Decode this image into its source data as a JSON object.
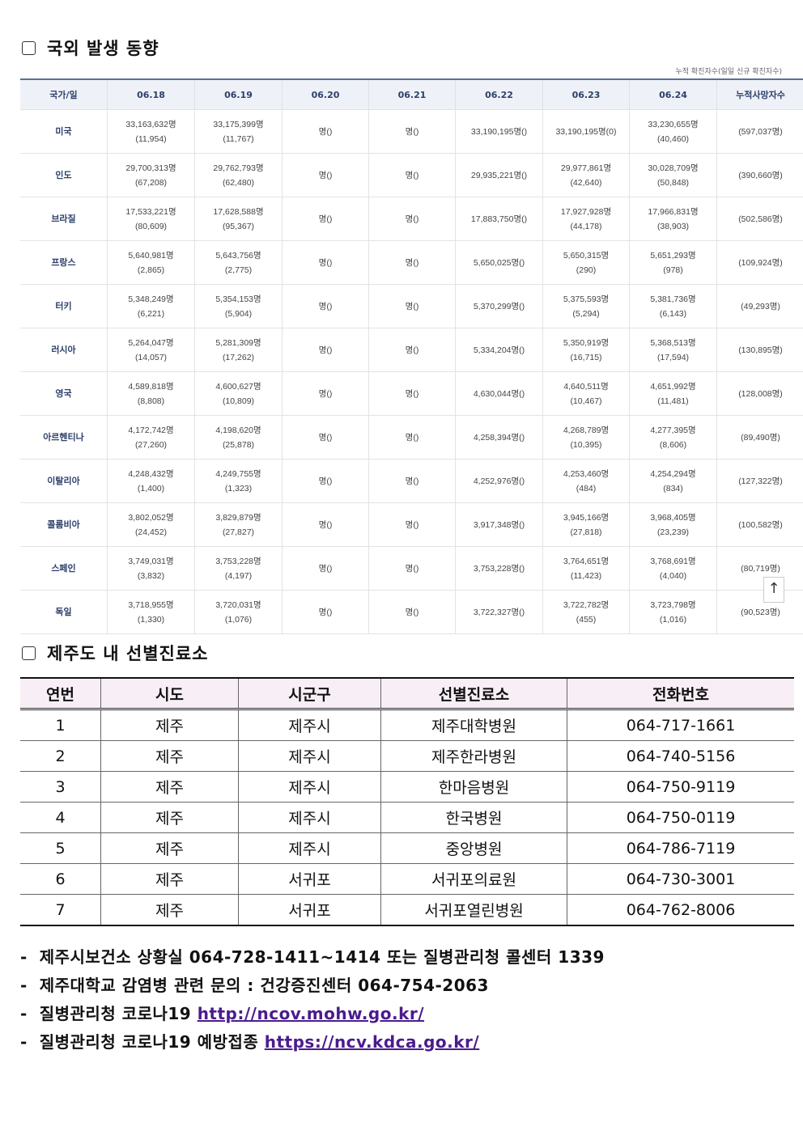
{
  "section1": {
    "title": "국외 발생 동향",
    "note": "누적 확진자수(일일 신규 확진자수)",
    "headers": [
      "국가/일",
      "06.18",
      "06.19",
      "06.20",
      "06.21",
      "06.22",
      "06.23",
      "06.24",
      "누적사망자수"
    ],
    "rows": [
      [
        "미국",
        "33,163,632명\n(11,954)",
        "33,175,399명\n(11,767)",
        "명()",
        "명()",
        "33,190,195명()",
        "33,190,195명(0)",
        "33,230,655명\n(40,460)",
        "(597,037명)"
      ],
      [
        "인도",
        "29,700,313명\n(67,208)",
        "29,762,793명\n(62,480)",
        "명()",
        "명()",
        "29,935,221명()",
        "29,977,861명\n(42,640)",
        "30,028,709명\n(50,848)",
        "(390,660명)"
      ],
      [
        "브라질",
        "17,533,221명\n(80,609)",
        "17,628,588명\n(95,367)",
        "명()",
        "명()",
        "17,883,750명()",
        "17,927,928명\n(44,178)",
        "17,966,831명\n(38,903)",
        "(502,586명)"
      ],
      [
        "프랑스",
        "5,640,981명\n(2,865)",
        "5,643,756명\n(2,775)",
        "명()",
        "명()",
        "5,650,025명()",
        "5,650,315명\n(290)",
        "5,651,293명\n(978)",
        "(109,924명)"
      ],
      [
        "터키",
        "5,348,249명\n(6,221)",
        "5,354,153명\n(5,904)",
        "명()",
        "명()",
        "5,370,299명()",
        "5,375,593명\n(5,294)",
        "5,381,736명\n(6,143)",
        "(49,293명)"
      ],
      [
        "러시아",
        "5,264,047명\n(14,057)",
        "5,281,309명\n(17,262)",
        "명()",
        "명()",
        "5,334,204명()",
        "5,350,919명\n(16,715)",
        "5,368,513명\n(17,594)",
        "(130,895명)"
      ],
      [
        "영국",
        "4,589,818명\n(8,808)",
        "4,600,627명\n(10,809)",
        "명()",
        "명()",
        "4,630,044명()",
        "4,640,511명\n(10,467)",
        "4,651,992명\n(11,481)",
        "(128,008명)"
      ],
      [
        "아르헨티나",
        "4,172,742명\n(27,260)",
        "4,198,620명\n(25,878)",
        "명()",
        "명()",
        "4,258,394명()",
        "4,268,789명\n(10,395)",
        "4,277,395명\n(8,606)",
        "(89,490명)"
      ],
      [
        "이탈리아",
        "4,248,432명\n(1,400)",
        "4,249,755명\n(1,323)",
        "명()",
        "명()",
        "4,252,976명()",
        "4,253,460명\n(484)",
        "4,254,294명\n(834)",
        "(127,322명)"
      ],
      [
        "콜롬비아",
        "3,802,052명\n(24,452)",
        "3,829,879명\n(27,827)",
        "명()",
        "명()",
        "3,917,348명()",
        "3,945,166명\n(27,818)",
        "3,968,405명\n(23,239)",
        "(100,582명)"
      ],
      [
        "스페인",
        "3,749,031명\n(3,832)",
        "3,753,228명\n(4,197)",
        "명()",
        "명()",
        "3,753,228명()",
        "3,764,651명\n(11,423)",
        "3,768,691명\n(4,040)",
        "(80,719명)"
      ],
      [
        "독일",
        "3,718,955명\n(1,330)",
        "3,720,031명\n(1,076)",
        "명()",
        "명()",
        "3,722,327명()",
        "3,722,782명\n(455)",
        "3,723,798명\n(1,016)",
        "(90,523명)"
      ]
    ],
    "top_button": "↑"
  },
  "section2": {
    "title": "제주도 내 선별진료소",
    "headers": [
      "연번",
      "시도",
      "시군구",
      "선별진료소",
      "전화번호"
    ],
    "rows": [
      [
        "1",
        "제주",
        "제주시",
        "제주대학병원",
        "064-717-1661"
      ],
      [
        "2",
        "제주",
        "제주시",
        "제주한라병원",
        "064-740-5156"
      ],
      [
        "3",
        "제주",
        "제주시",
        "한마음병원",
        "064-750-9119"
      ],
      [
        "4",
        "제주",
        "제주시",
        "한국병원",
        "064-750-0119"
      ],
      [
        "5",
        "제주",
        "제주시",
        "중앙병원",
        "064-786-7119"
      ],
      [
        "6",
        "제주",
        "서귀포",
        "서귀포의료원",
        "064-730-3001"
      ],
      [
        "7",
        "제주",
        "서귀포",
        "서귀포열린병원",
        "064-762-8006"
      ]
    ]
  },
  "footer": [
    {
      "text": "-  제주시보건소 상황실 064-728-1411~1414 또는 질병관리청 콜센터 1339",
      "link": ""
    },
    {
      "text": "-  제주대학교 감염병 관련 문의 : 건강증진센터 064-754-2063",
      "link": ""
    },
    {
      "text": "-  질병관리청 코로나19 ",
      "link": "http://ncov.mohw.go.kr/"
    },
    {
      "text": "-  질병관리청 코로나19 예방접종 ",
      "link": "https://ncv.kdca.go.kr/"
    }
  ]
}
